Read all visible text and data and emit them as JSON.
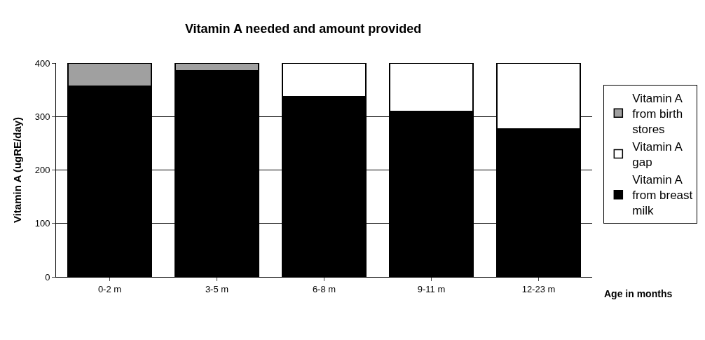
{
  "chart_data": {
    "type": "bar",
    "title": "Vitamin A needed and amount provided",
    "ylabel": "Vitamin A (ugRE/day)",
    "xlabel": "Age in months",
    "categories": [
      "0-2 m",
      "3-5 m",
      "6-8 m",
      "9-11 m",
      "12-23 m"
    ],
    "stacked": true,
    "ylim": [
      0,
      400
    ],
    "yticks": [
      0,
      100,
      200,
      300,
      400
    ],
    "grid": "y",
    "legend": "right",
    "series": [
      {
        "name": "Vitamin A from breast milk",
        "color": "#000000",
        "values": [
          357,
          386,
          338,
          310,
          277
        ]
      },
      {
        "name": "Vitamin A gap",
        "color": "#ffffff",
        "values": [
          null,
          null,
          62,
          90,
          123
        ]
      },
      {
        "name": "Vitamin A from birth stores",
        "color": "#a0a0a0",
        "values": [
          43,
          14,
          null,
          null,
          null
        ]
      }
    ]
  }
}
